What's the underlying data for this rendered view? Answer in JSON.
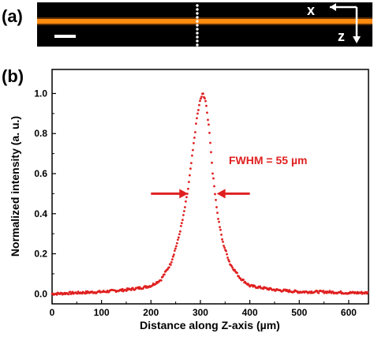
{
  "panel_a": {
    "label": "(a)",
    "axis_x_label": "x",
    "axis_z_label": "z",
    "colors": {
      "background": "#000000",
      "beam": "#ff8a10",
      "marker": "#ffffff"
    }
  },
  "panel_b": {
    "label": "(b)",
    "annotation": "FWHM = 55 µm"
  },
  "chart_data": {
    "type": "scatter",
    "title": "",
    "xlabel": "Distance along Z-axis (µm)",
    "ylabel": "Normalized intensity (a. u.)",
    "xlim": [
      0,
      640
    ],
    "ylim": [
      -0.05,
      1.12
    ],
    "xticks": [
      0,
      100,
      200,
      300,
      400,
      500,
      600
    ],
    "xtick_labels": [
      "0",
      "100",
      "200",
      "300",
      "400",
      "500",
      "600"
    ],
    "yticks": [
      0.0,
      0.2,
      0.4,
      0.6,
      0.8,
      1.0
    ],
    "ytick_labels": [
      "0.0",
      "0.2",
      "0.4",
      "0.6",
      "0.8",
      "1.0"
    ],
    "grid": false,
    "color": "#e02020",
    "profile": {
      "x": [
        0,
        50,
        100,
        150,
        180,
        200,
        220,
        240,
        255,
        265,
        275,
        285,
        293,
        300,
        305,
        310,
        318,
        325,
        335,
        345,
        360,
        380,
        400,
        450,
        500,
        550,
        600,
        640
      ],
      "y": [
        0.0,
        0.005,
        0.01,
        0.02,
        0.03,
        0.04,
        0.07,
        0.15,
        0.27,
        0.38,
        0.52,
        0.72,
        0.88,
        0.97,
        1.0,
        0.97,
        0.82,
        0.6,
        0.39,
        0.26,
        0.15,
        0.08,
        0.04,
        0.02,
        0.01,
        0.01,
        0.005,
        0.005
      ]
    },
    "fwhm_arrows": {
      "left": {
        "from": 200,
        "to": 275,
        "y": 0.5
      },
      "right": {
        "from": 400,
        "to": 333,
        "y": 0.5
      }
    }
  }
}
